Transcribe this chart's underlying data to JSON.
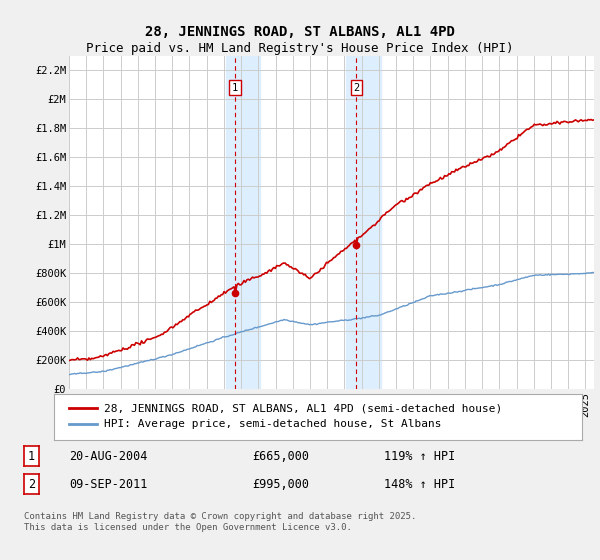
{
  "title": "28, JENNINGS ROAD, ST ALBANS, AL1 4PD",
  "subtitle": "Price paid vs. HM Land Registry's House Price Index (HPI)",
  "ylabel_ticks": [
    "£0",
    "£200K",
    "£400K",
    "£600K",
    "£800K",
    "£1M",
    "£1.2M",
    "£1.4M",
    "£1.6M",
    "£1.8M",
    "£2M",
    "£2.2M"
  ],
  "ylim": [
    0,
    2300000
  ],
  "ytick_values": [
    0,
    200000,
    400000,
    600000,
    800000,
    1000000,
    1200000,
    1400000,
    1600000,
    1800000,
    2000000,
    2200000
  ],
  "xlim_start": 1995.0,
  "xlim_end": 2025.5,
  "shade_x1_start": 2004.1,
  "shade_x1_end": 2006.1,
  "shade_x2_start": 2011.1,
  "shade_x2_end": 2013.1,
  "vline1_x": 2004.64,
  "vline2_x": 2011.69,
  "marker1_x": 2004.64,
  "marker1_y": 665000,
  "marker2_x": 2011.69,
  "marker2_y": 995000,
  "sale1_label": "1",
  "sale1_date": "20-AUG-2004",
  "sale1_price": "£665,000",
  "sale1_hpi": "119% ↑ HPI",
  "sale2_label": "2",
  "sale2_date": "09-SEP-2011",
  "sale2_price": "£995,000",
  "sale2_hpi": "148% ↑ HPI",
  "legend1_label": "28, JENNINGS ROAD, ST ALBANS, AL1 4PD (semi-detached house)",
  "legend2_label": "HPI: Average price, semi-detached house, St Albans",
  "footer": "Contains HM Land Registry data © Crown copyright and database right 2025.\nThis data is licensed under the Open Government Licence v3.0.",
  "red_color": "#cc0000",
  "blue_color": "#6699cc",
  "shade_color": "#ddeeff",
  "background_color": "#f0f0f0",
  "plot_bg_color": "#ffffff",
  "grid_color": "#cccccc",
  "title_fontsize": 10,
  "subtitle_fontsize": 9,
  "tick_fontsize": 7.5,
  "legend_fontsize": 8,
  "footer_fontsize": 6.5
}
